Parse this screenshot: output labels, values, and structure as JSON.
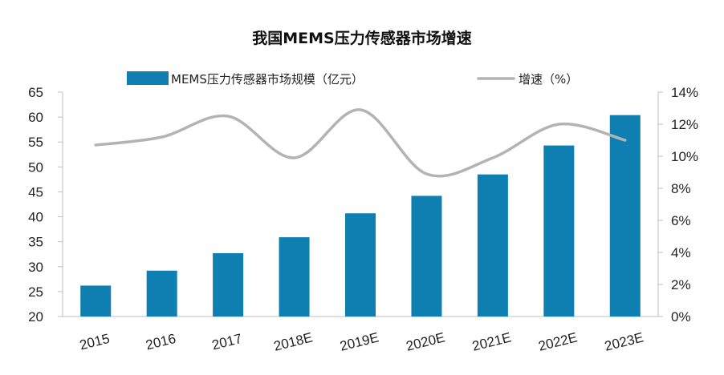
{
  "chart_data": {
    "type": "bar",
    "title": "我国MEMS压力传感器市场增速",
    "categories": [
      "2015",
      "2016",
      "2017",
      "2018E",
      "2019E",
      "2020E",
      "2021E",
      "2022E",
      "2023E"
    ],
    "series": [
      {
        "name": "MEMS压力传感器市场规模（亿元）",
        "type": "bar",
        "axis": "left",
        "color": "#0e7fb0",
        "values": [
          26.2,
          29.2,
          32.7,
          35.9,
          40.7,
          44.2,
          48.5,
          54.3,
          60.4
        ]
      },
      {
        "name": "增速（%）",
        "type": "line",
        "axis": "right",
        "color": "#b3b3b3",
        "values": [
          10.7,
          11.2,
          12.5,
          9.9,
          12.9,
          8.9,
          9.9,
          12.0,
          11.0
        ]
      }
    ],
    "y_left": {
      "min": 20,
      "max": 65,
      "ticks": [
        "20",
        "25",
        "30",
        "35",
        "40",
        "45",
        "50",
        "55",
        "60",
        "65"
      ]
    },
    "y_right": {
      "min": 0,
      "max": 14,
      "ticks": [
        "0%",
        "2%",
        "4%",
        "6%",
        "8%",
        "10%",
        "12%",
        "14%"
      ]
    },
    "legend_position": "top",
    "grid": false
  }
}
